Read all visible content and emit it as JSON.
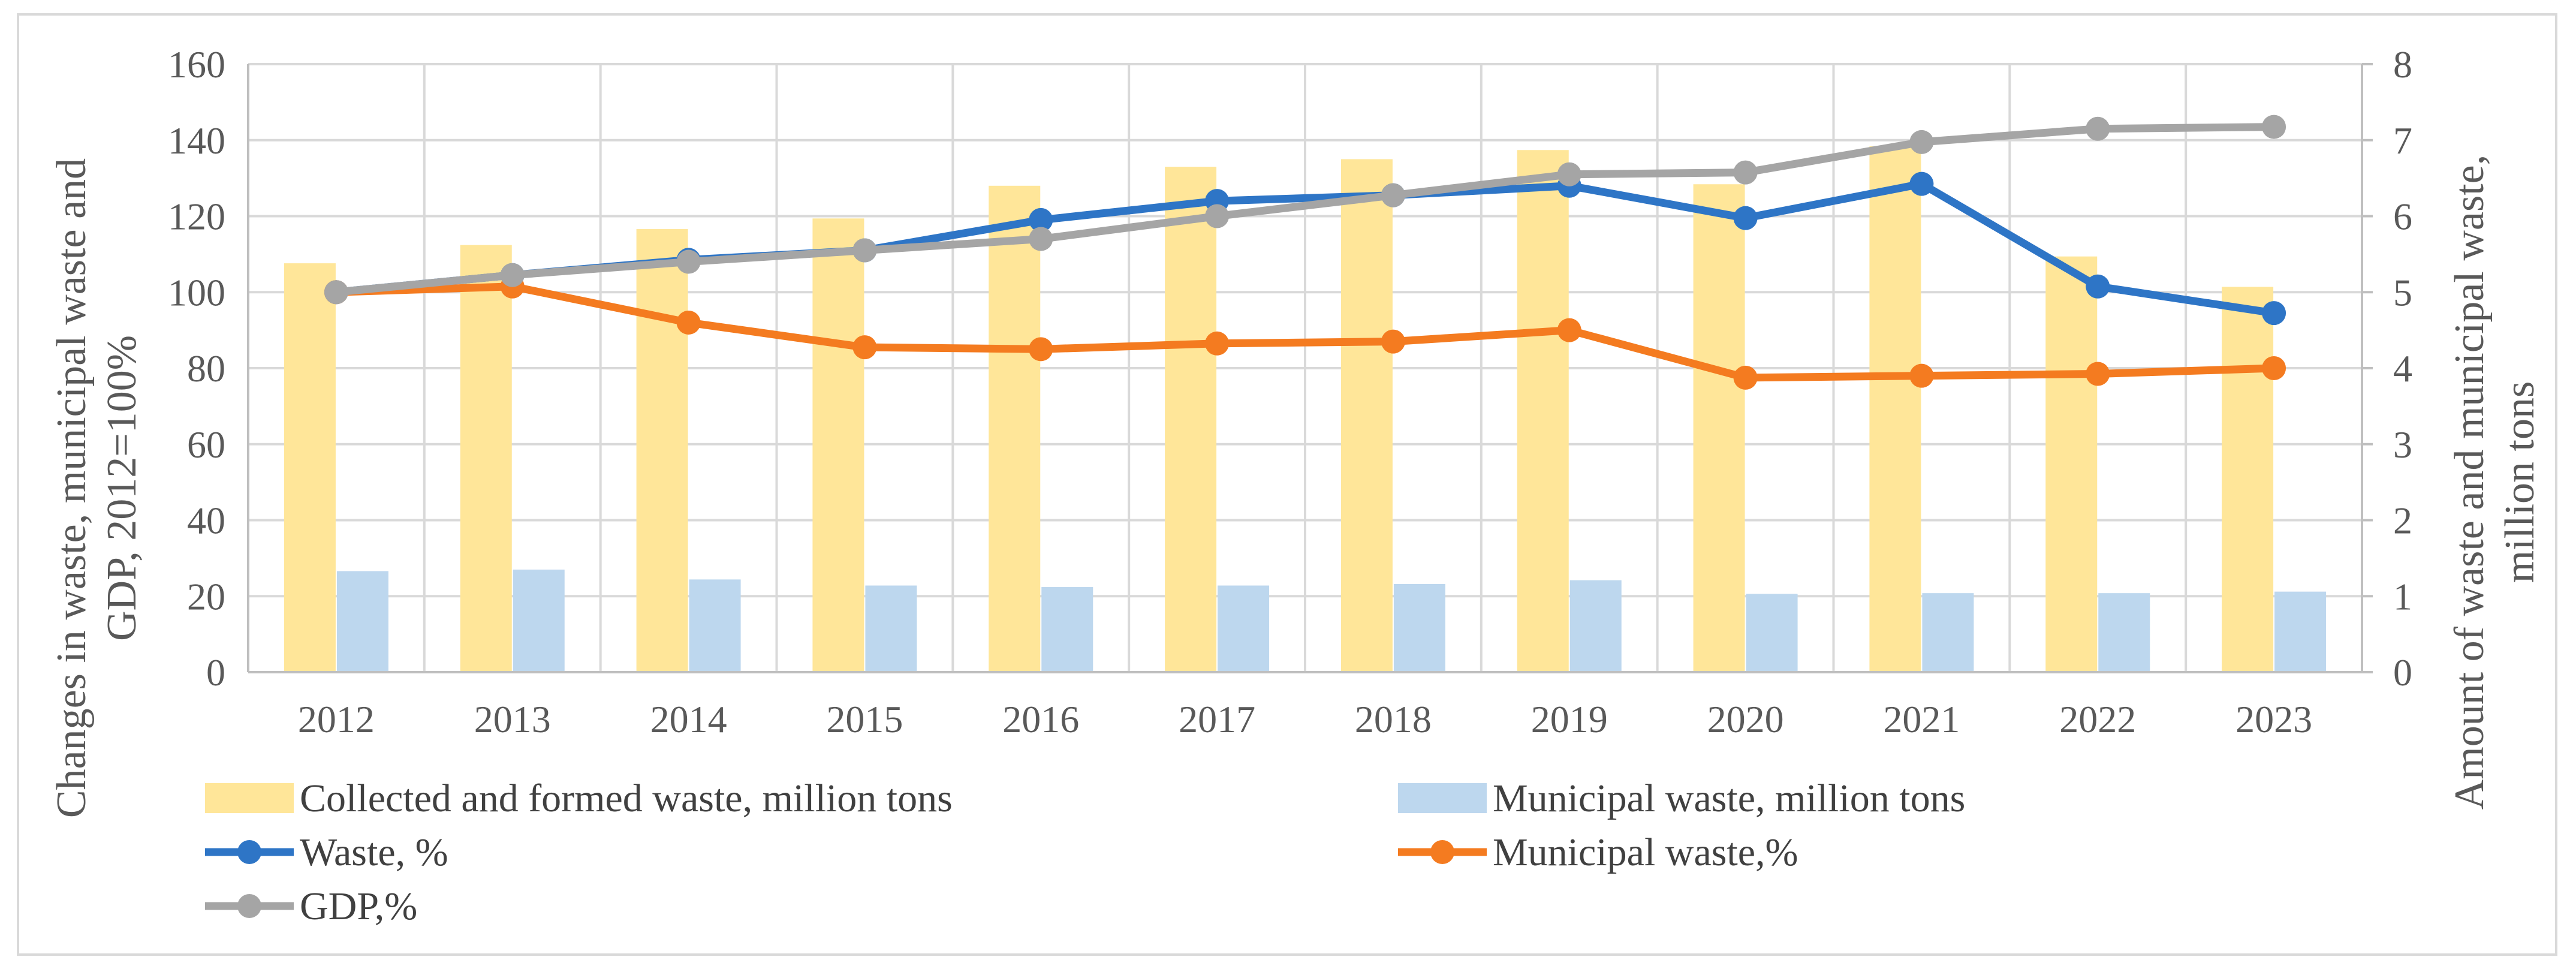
{
  "chart_data": {
    "type": "bar",
    "title": "",
    "categories": [
      "2012",
      "2013",
      "2014",
      "2015",
      "2016",
      "2017",
      "2018",
      "2019",
      "2020",
      "2021",
      "2022",
      "2023"
    ],
    "y_left": {
      "label_lines": [
        "Changes in waste, municipal waste and",
        "GDP, 2012=100%"
      ],
      "range": [
        0,
        160
      ],
      "ticks": [
        "0",
        "20",
        "40",
        "60",
        "80",
        "100",
        "120",
        "140",
        "160"
      ]
    },
    "y_right": {
      "label_lines": [
        "Amount of waste and municipal waste,",
        "million tons"
      ],
      "range": [
        0,
        8
      ],
      "ticks": [
        "0",
        "1",
        "2",
        "3",
        "4",
        "5",
        "6",
        "7",
        "8"
      ]
    },
    "bar_series": [
      {
        "name": "Collected and formed waste, million tons",
        "color": "#ffe699",
        "axis": "right",
        "values": [
          5.38,
          5.62,
          5.83,
          5.97,
          6.4,
          6.65,
          6.75,
          6.87,
          6.42,
          6.92,
          5.47,
          5.07
        ]
      },
      {
        "name": "Municipal waste, million tons",
        "color": "#bdd7ee",
        "axis": "right",
        "values": [
          1.33,
          1.35,
          1.22,
          1.14,
          1.12,
          1.14,
          1.16,
          1.21,
          1.03,
          1.04,
          1.04,
          1.06
        ]
      }
    ],
    "line_series": [
      {
        "name": "Waste, %",
        "color": "#2e75c6",
        "axis": "left",
        "values": [
          100,
          104.5,
          108.5,
          111,
          119,
          124,
          125.5,
          128,
          119.5,
          128.5,
          101.5,
          94.5
        ]
      },
      {
        "name": "Municipal waste,%",
        "color": "#f47b20",
        "axis": "left",
        "values": [
          100,
          101.5,
          92,
          85.5,
          85,
          86.5,
          87,
          90,
          77.5,
          78,
          78.5,
          80
        ]
      },
      {
        "name": "GDP,%",
        "color": "#a5a5a5",
        "axis": "left",
        "values": [
          100,
          104.5,
          108,
          111,
          114,
          120,
          125.5,
          131,
          131.5,
          139.5,
          143,
          143.5
        ]
      }
    ],
    "legend": {
      "position": "bottom",
      "entries": [
        {
          "label": "Collected and formed waste, million tons",
          "kind": "bar",
          "color": "#ffe699"
        },
        {
          "label": "Municipal waste, million tons",
          "kind": "bar",
          "color": "#bdd7ee"
        },
        {
          "label": "Waste, %",
          "kind": "line",
          "color": "#2e75c6"
        },
        {
          "label": "Municipal waste,%",
          "kind": "line",
          "color": "#f47b20"
        },
        {
          "label": "GDP,%",
          "kind": "line",
          "color": "#a5a5a5"
        }
      ]
    },
    "grid": true
  }
}
